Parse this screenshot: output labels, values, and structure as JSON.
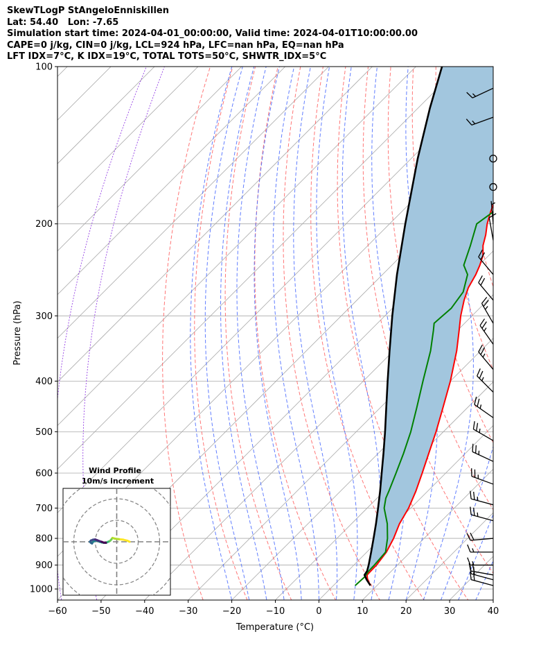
{
  "header": {
    "line1": "SkewTLogP StAngeloEnniskillen",
    "line2": "Lat: 54.40   Lon: -7.65",
    "line3": "Simulation start time: 2024-04-01_00:00:00, Valid time: 2024-04-01T10:00:00.00",
    "line4": "CAPE=0 j/kg, CIN=0 j/kg, LCL=924 hPa, LFC=nan hPa, EQ=nan hPa",
    "line5": "LFT IDX=7°C, K IDX=19°C, TOTAL TOTS=50°C, SHWTR_IDX=5°C"
  },
  "chart_data": {
    "type": "line",
    "title": "SkewTLogP StAngeloEnniskillen",
    "xlabel": "Temperature (°C)",
    "ylabel": "Pressure (hPa)",
    "xlim": [
      -60,
      40
    ],
    "ylim": [
      1050,
      100
    ],
    "y_scale": "log",
    "grid": true,
    "x_ticks": [
      -60,
      -50,
      -40,
      -30,
      -20,
      -10,
      0,
      10,
      20,
      30,
      40
    ],
    "x_tick_labels": [
      "−60",
      "−50",
      "−40",
      "−30",
      "−20",
      "−10",
      "0",
      "10",
      "20",
      "30",
      "40"
    ],
    "y_ticks": [
      100,
      200,
      300,
      400,
      500,
      600,
      700,
      800,
      900,
      1000
    ],
    "y_tick_labels": [
      "100",
      "200",
      "300",
      "400",
      "500",
      "600",
      "700",
      "800",
      "900",
      "1000"
    ],
    "series": [
      {
        "role": "temperature",
        "color": "#ff0000",
        "points": [
          [
            985,
            8.5
          ],
          [
            960,
            6.5
          ],
          [
            940,
            5.3
          ],
          [
            900,
            5.2
          ],
          [
            850,
            4.5
          ],
          [
            800,
            3.0
          ],
          [
            750,
            1.0
          ],
          [
            700,
            -0.5
          ],
          [
            650,
            -2.7
          ],
          [
            600,
            -5.4
          ],
          [
            550,
            -8.4
          ],
          [
            500,
            -11.7
          ],
          [
            450,
            -15.6
          ],
          [
            400,
            -20.0
          ],
          [
            350,
            -25.5
          ],
          [
            320,
            -29.6
          ],
          [
            300,
            -32.6
          ],
          [
            280,
            -35.4
          ],
          [
            265,
            -37.3
          ],
          [
            250,
            -38.6
          ],
          [
            240,
            -39.8
          ],
          [
            230,
            -41.3
          ],
          [
            220,
            -43.6
          ],
          [
            210,
            -45.4
          ],
          [
            200,
            -47.6
          ],
          [
            190,
            -49.5
          ],
          [
            180,
            -51.3
          ],
          [
            170,
            -53.4
          ],
          [
            160,
            -55.4
          ],
          [
            150,
            -57.9
          ],
          [
            140,
            -60.4
          ],
          [
            130,
            -63.6
          ],
          [
            120,
            -67.3
          ],
          [
            110,
            -71.5
          ],
          [
            100,
            -76.0
          ]
        ]
      },
      {
        "role": "dewpoint",
        "color": "#008000",
        "points": [
          [
            985,
            5.0
          ],
          [
            950,
            5.2
          ],
          [
            925,
            4.8
          ],
          [
            900,
            4.7
          ],
          [
            850,
            4.3
          ],
          [
            800,
            1.6
          ],
          [
            750,
            -1.8
          ],
          [
            700,
            -6.1
          ],
          [
            670,
            -8.0
          ],
          [
            650,
            -8.9
          ],
          [
            600,
            -11.4
          ],
          [
            550,
            -14.2
          ],
          [
            500,
            -17.5
          ],
          [
            450,
            -21.6
          ],
          [
            400,
            -26.3
          ],
          [
            350,
            -31.5
          ],
          [
            320,
            -35.5
          ],
          [
            310,
            -37.0
          ],
          [
            290,
            -36.5
          ],
          [
            270,
            -37.5
          ],
          [
            250,
            -40.5
          ],
          [
            240,
            -43.5
          ],
          [
            220,
            -46.5
          ],
          [
            200,
            -50.0
          ],
          [
            190,
            -49.0
          ],
          [
            180,
            -49.0
          ],
          [
            160,
            -51.0
          ],
          [
            140,
            -54.0
          ],
          [
            120,
            -57.5
          ],
          [
            110,
            -60.0
          ],
          [
            100,
            -62.5
          ]
        ]
      },
      {
        "role": "parcel_profile",
        "color": "#000000",
        "points": [
          [
            985,
            8.5
          ],
          [
            960,
            6.3
          ],
          [
            940,
            4.7
          ],
          [
            924,
            4.4
          ],
          [
            900,
            3.4
          ],
          [
            850,
            1.0
          ],
          [
            800,
            -1.6
          ],
          [
            750,
            -4.4
          ],
          [
            700,
            -7.5
          ],
          [
            650,
            -10.9
          ],
          [
            600,
            -14.7
          ],
          [
            550,
            -18.8
          ],
          [
            500,
            -23.4
          ],
          [
            450,
            -28.6
          ],
          [
            400,
            -34.4
          ],
          [
            350,
            -40.9
          ],
          [
            300,
            -48.3
          ],
          [
            250,
            -56.7
          ],
          [
            200,
            -66.4
          ],
          [
            150,
            -78.5
          ],
          [
            120,
            -87.3
          ],
          [
            100,
            -94.0
          ]
        ]
      }
    ],
    "cin_shading": {
      "color": "#a2c6de",
      "between": [
        "parcel_profile",
        "temperature"
      ]
    },
    "wind_barbs": [
      {
        "p": 985,
        "speed_kt": 20,
        "dir_deg": 285
      },
      {
        "p": 960,
        "speed_kt": 20,
        "dir_deg": 285
      },
      {
        "p": 940,
        "speed_kt": 20,
        "dir_deg": 280
      },
      {
        "p": 900,
        "speed_kt": 15,
        "dir_deg": 270
      },
      {
        "p": 850,
        "speed_kt": 15,
        "dir_deg": 270
      },
      {
        "p": 800,
        "speed_kt": 20,
        "dir_deg": 265
      },
      {
        "p": 740,
        "speed_kt": 25,
        "dir_deg": 285
      },
      {
        "p": 690,
        "speed_kt": 25,
        "dir_deg": 285
      },
      {
        "p": 630,
        "speed_kt": 25,
        "dir_deg": 290
      },
      {
        "p": 570,
        "speed_kt": 25,
        "dir_deg": 295
      },
      {
        "p": 520,
        "speed_kt": 25,
        "dir_deg": 300
      },
      {
        "p": 470,
        "speed_kt": 25,
        "dir_deg": 305
      },
      {
        "p": 420,
        "speed_kt": 25,
        "dir_deg": 315
      },
      {
        "p": 380,
        "speed_kt": 25,
        "dir_deg": 320
      },
      {
        "p": 340,
        "speed_kt": 25,
        "dir_deg": 325
      },
      {
        "p": 310,
        "speed_kt": 25,
        "dir_deg": 330
      },
      {
        "p": 280,
        "speed_kt": 20,
        "dir_deg": 320
      },
      {
        "p": 250,
        "speed_kt": 20,
        "dir_deg": 320
      },
      {
        "p": 215,
        "speed_kt": 10,
        "dir_deg": 350
      },
      {
        "p": 200,
        "speed_kt": 5,
        "dir_deg": 355
      },
      {
        "p": 170,
        "speed_kt": 0,
        "dir_deg": 0
      },
      {
        "p": 150,
        "speed_kt": 0,
        "dir_deg": 0
      },
      {
        "p": 125,
        "speed_kt": 15,
        "dir_deg": 250
      },
      {
        "p": 110,
        "speed_kt": 15,
        "dir_deg": 245
      }
    ],
    "hodograph": {
      "title_line1": "Wind Profile",
      "title_line2": "10m/s increment",
      "rings_ms": [
        10,
        20,
        30
      ],
      "range_ms": 25,
      "points": [
        [
          6,
          0
        ],
        [
          5,
          0.5
        ],
        [
          3,
          1
        ],
        [
          1,
          1.2
        ],
        [
          -1,
          1.5
        ],
        [
          -2,
          1.8
        ],
        [
          -2.4,
          1.2
        ],
        [
          -3,
          0.5
        ],
        [
          -4,
          0
        ],
        [
          -5,
          -0.5
        ],
        [
          -6,
          -0.5
        ],
        [
          -7,
          -0.3
        ],
        [
          -8,
          0
        ],
        [
          -9,
          0.5
        ],
        [
          -10,
          0.5
        ],
        [
          -11,
          0
        ],
        [
          -11.5,
          -0.8
        ],
        [
          -12,
          -0.5
        ],
        [
          -12.5,
          0
        ],
        [
          -12,
          0.6
        ],
        [
          -11,
          1.0
        ],
        [
          -10,
          1.1
        ],
        [
          -9,
          0.7
        ],
        [
          -8,
          0.3
        ],
        [
          -7,
          0
        ],
        [
          -6,
          -0.4
        ],
        [
          -5,
          -0.5
        ]
      ]
    }
  },
  "colors": {
    "temperature": "#ff0000",
    "dewpoint": "#008000",
    "parcel": "#000000",
    "shading": "#a2c6de",
    "isotherms": "#a9a9a9",
    "dry_adiabats": "#ff6666",
    "moist_adiabats": "#4466ff",
    "mixing_ratio": "#8a2be2"
  }
}
